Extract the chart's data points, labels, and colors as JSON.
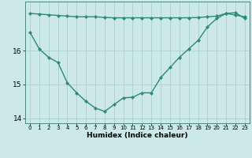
{
  "x": [
    0,
    1,
    2,
    3,
    4,
    5,
    6,
    7,
    8,
    9,
    10,
    11,
    12,
    13,
    14,
    15,
    16,
    17,
    18,
    19,
    20,
    21,
    22,
    23
  ],
  "line1": [
    16.55,
    16.05,
    15.8,
    15.65,
    15.05,
    14.75,
    14.5,
    14.3,
    14.2,
    14.4,
    14.6,
    14.62,
    14.75,
    14.75,
    15.2,
    15.5,
    15.8,
    16.05,
    16.3,
    16.7,
    16.95,
    17.1,
    17.12,
    16.95
  ],
  "line2": [
    17.1,
    17.08,
    17.06,
    17.04,
    17.02,
    17.0,
    17.0,
    17.0,
    16.98,
    16.97,
    16.97,
    16.97,
    16.97,
    16.97,
    16.97,
    16.97,
    16.97,
    16.97,
    16.98,
    17.0,
    17.02,
    17.1,
    17.05,
    17.0
  ],
  "line_color": "#2d8b72",
  "bg_color": "#cce8e8",
  "grid_color": "#aacece",
  "xlabel": "Humidex (Indice chaleur)",
  "ylim": [
    13.85,
    17.45
  ],
  "xlim": [
    -0.5,
    23.5
  ],
  "yticks": [
    14,
    15,
    16
  ],
  "xticks": [
    0,
    1,
    2,
    3,
    4,
    5,
    6,
    7,
    8,
    9,
    10,
    11,
    12,
    13,
    14,
    15,
    16,
    17,
    18,
    19,
    20,
    21,
    22,
    23
  ],
  "marker": "D",
  "markersize": 2.2,
  "linewidth": 1.0,
  "tick_fontsize": 5.0,
  "xlabel_fontsize": 6.5,
  "ytick_fontsize": 6.5
}
